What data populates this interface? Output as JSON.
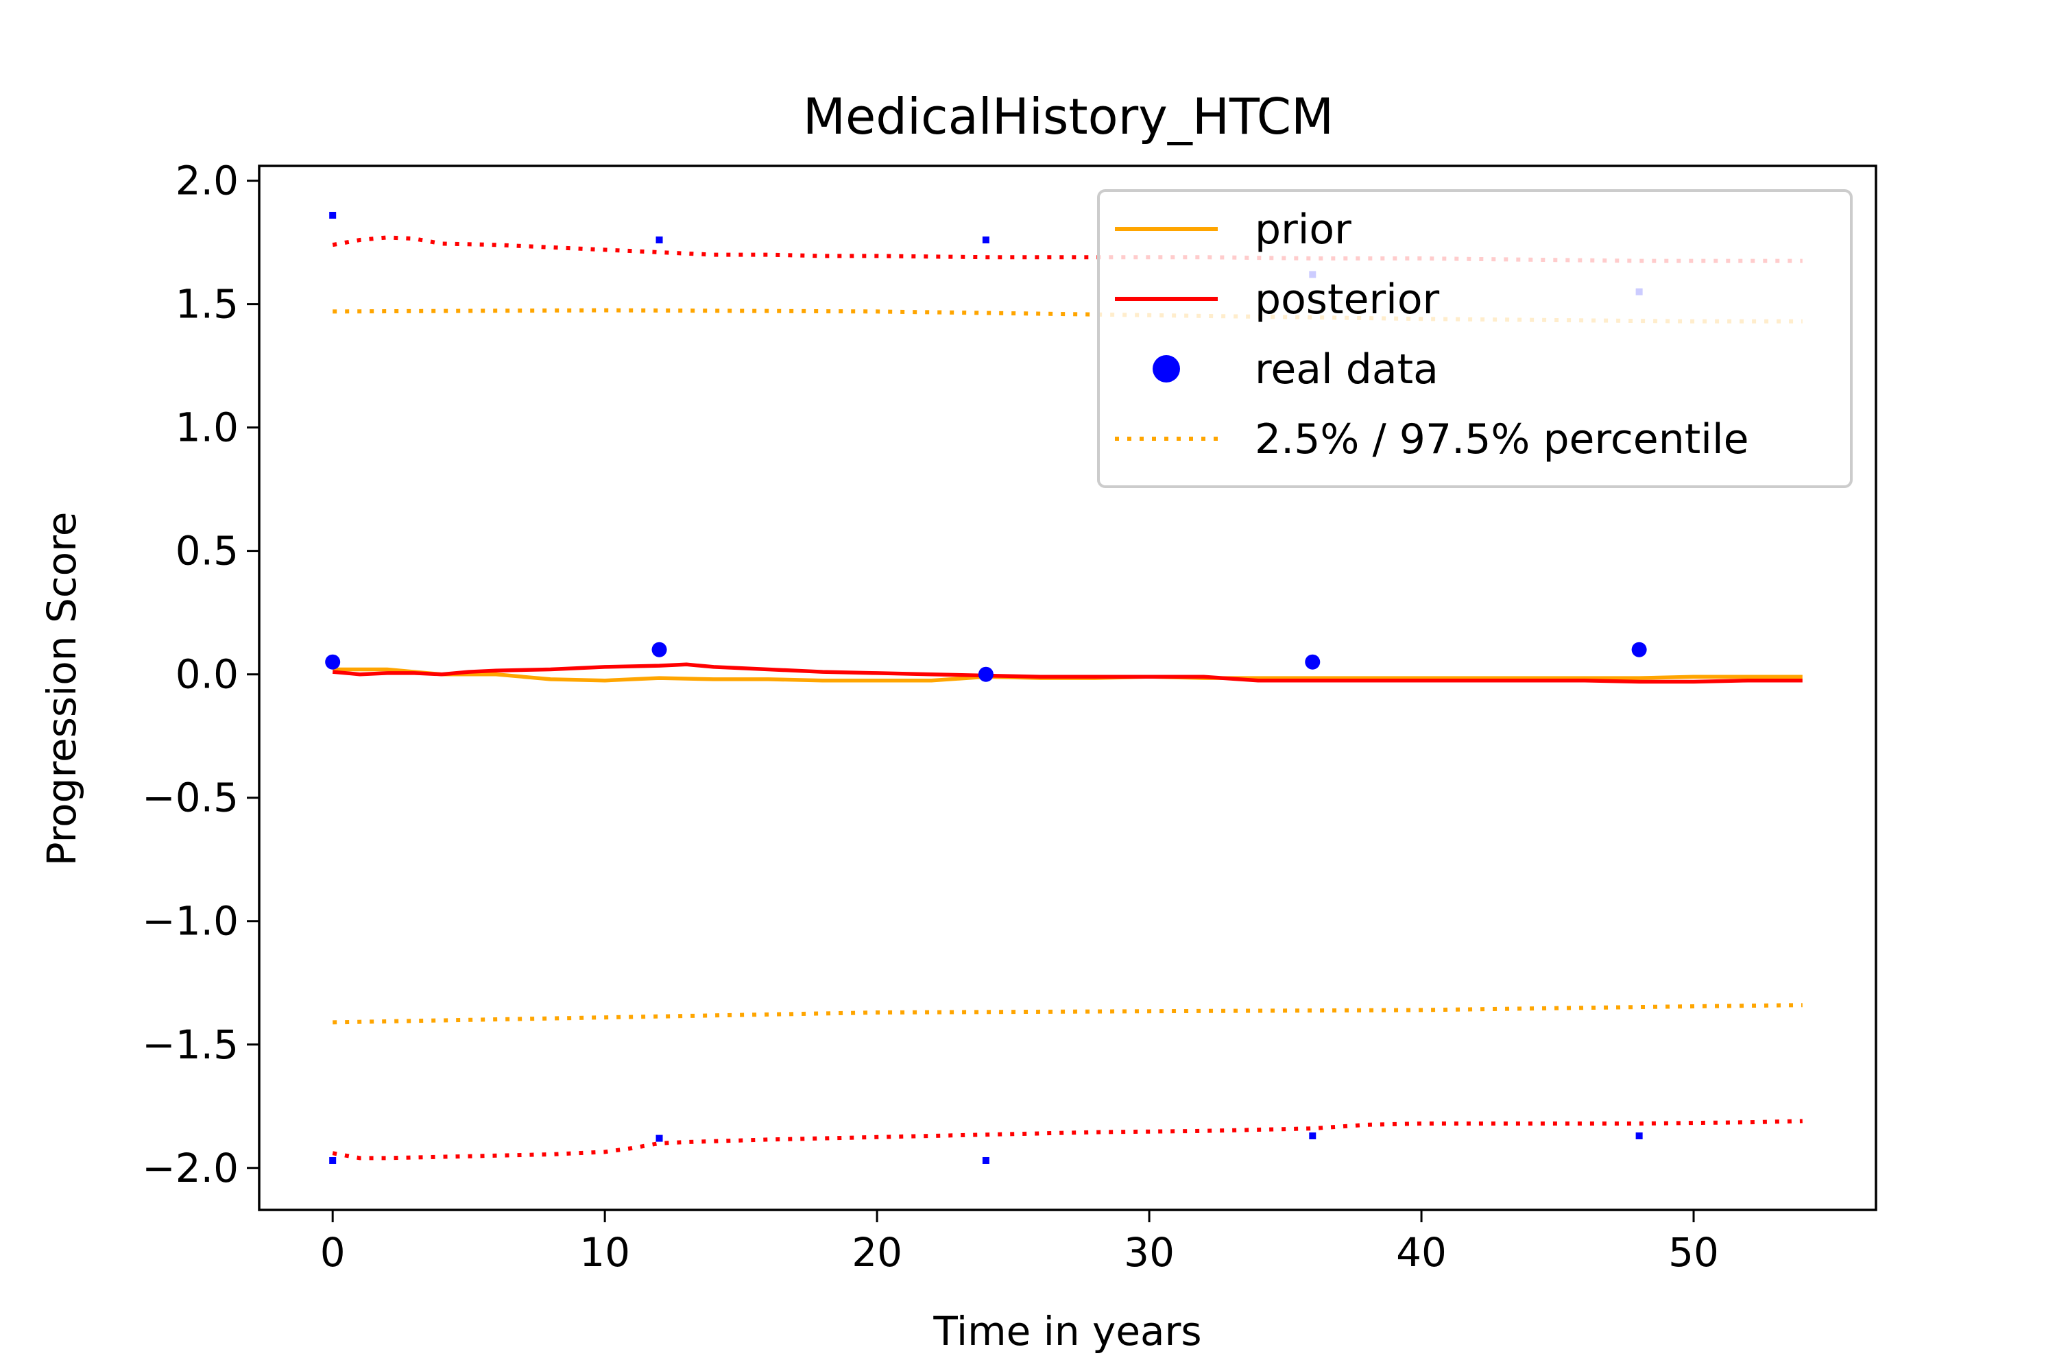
{
  "chart_data": {
    "type": "line",
    "title": "MedicalHistory_HTCM",
    "xlabel": "Time in years",
    "ylabel": "Progression Score",
    "xlim": [
      -2.7,
      56.7
    ],
    "ylim": [
      -2.17,
      2.06
    ],
    "grid": false,
    "legend_position": "top-right",
    "x_ticks": [
      {
        "value": 0,
        "label": "0"
      },
      {
        "value": 10,
        "label": "10"
      },
      {
        "value": 20,
        "label": "20"
      },
      {
        "value": 30,
        "label": "30"
      },
      {
        "value": 40,
        "label": "40"
      },
      {
        "value": 50,
        "label": "50"
      }
    ],
    "y_ticks": [
      {
        "value": 2.0,
        "label": "2.0"
      },
      {
        "value": 1.5,
        "label": "1.5"
      },
      {
        "value": 1.0,
        "label": "1.0"
      },
      {
        "value": 0.5,
        "label": "0.5"
      },
      {
        "value": 0.0,
        "label": "0.0"
      },
      {
        "value": -0.5,
        "label": "−0.5"
      },
      {
        "value": -1.0,
        "label": "−1.0"
      },
      {
        "value": -1.5,
        "label": "−1.5"
      },
      {
        "value": -2.0,
        "label": "−2.0"
      }
    ],
    "legend": [
      {
        "label": "prior",
        "style": "line",
        "color": "#ffa500"
      },
      {
        "label": "posterior",
        "style": "line",
        "color": "#ff0000"
      },
      {
        "label": "real data",
        "style": "marker",
        "color": "#0000ff"
      },
      {
        "label": "2.5% / 97.5% percentile",
        "style": "dotted",
        "color": "#ffa500"
      }
    ],
    "series": [
      {
        "key": "prior_mean",
        "color": "#ffa500",
        "style": "solid",
        "x": [
          0,
          2,
          4,
          6,
          8,
          10,
          12,
          14,
          16,
          18,
          20,
          22,
          24,
          26,
          28,
          30,
          32,
          34,
          36,
          38,
          40,
          42,
          44,
          46,
          48,
          50,
          52,
          54
        ],
        "y": [
          0.02,
          0.02,
          0.0,
          0.0,
          -0.02,
          -0.025,
          -0.015,
          -0.02,
          -0.02,
          -0.025,
          -0.025,
          -0.025,
          -0.01,
          -0.015,
          -0.015,
          -0.01,
          -0.015,
          -0.015,
          -0.015,
          -0.015,
          -0.015,
          -0.015,
          -0.015,
          -0.015,
          -0.015,
          -0.01,
          -0.01,
          -0.01
        ]
      },
      {
        "key": "posterior_mean",
        "color": "#ff0000",
        "style": "solid",
        "x": [
          0,
          1,
          2,
          3,
          4,
          5,
          6,
          8,
          10,
          12,
          13,
          14,
          16,
          18,
          20,
          22,
          24,
          26,
          28,
          30,
          32,
          34,
          36,
          38,
          40,
          42,
          44,
          46,
          48,
          50,
          52,
          54
        ],
        "y": [
          0.01,
          0.0,
          0.005,
          0.005,
          0.0,
          0.01,
          0.015,
          0.02,
          0.03,
          0.035,
          0.04,
          0.03,
          0.02,
          0.01,
          0.005,
          0.0,
          -0.005,
          -0.01,
          -0.01,
          -0.01,
          -0.01,
          -0.025,
          -0.025,
          -0.025,
          -0.025,
          -0.025,
          -0.025,
          -0.025,
          -0.03,
          -0.03,
          -0.025,
          -0.025
        ]
      },
      {
        "key": "prior_upper",
        "color": "#ffa500",
        "style": "dotted",
        "x": [
          0,
          10,
          20,
          30,
          40,
          50,
          54
        ],
        "y": [
          1.47,
          1.475,
          1.47,
          1.455,
          1.44,
          1.43,
          1.43
        ]
      },
      {
        "key": "prior_lower",
        "color": "#ffa500",
        "style": "dotted",
        "x": [
          0,
          10,
          20,
          30,
          40,
          50,
          54
        ],
        "y": [
          -1.41,
          -1.39,
          -1.37,
          -1.365,
          -1.36,
          -1.345,
          -1.34
        ]
      },
      {
        "key": "posterior_upper",
        "color": "#ff0000",
        "style": "dotted",
        "x": [
          0,
          1,
          2,
          3,
          4,
          6,
          8,
          10,
          12,
          14,
          16,
          18,
          20,
          24,
          28,
          32,
          36,
          40,
          44,
          48,
          52,
          54
        ],
        "y": [
          1.74,
          1.76,
          1.77,
          1.765,
          1.745,
          1.74,
          1.73,
          1.72,
          1.71,
          1.7,
          1.7,
          1.695,
          1.695,
          1.69,
          1.69,
          1.69,
          1.685,
          1.685,
          1.68,
          1.675,
          1.675,
          1.675
        ]
      },
      {
        "key": "posterior_lower",
        "color": "#ff0000",
        "style": "dotted",
        "x": [
          0,
          1,
          2,
          4,
          6,
          8,
          10,
          11,
          12,
          13,
          16,
          20,
          24,
          28,
          32,
          36,
          38,
          40,
          44,
          48,
          52,
          54
        ],
        "y": [
          -1.94,
          -1.96,
          -1.96,
          -1.955,
          -1.95,
          -1.945,
          -1.935,
          -1.92,
          -1.9,
          -1.895,
          -1.885,
          -1.875,
          -1.865,
          -1.855,
          -1.85,
          -1.84,
          -1.825,
          -1.82,
          -1.82,
          -1.82,
          -1.815,
          -1.81
        ]
      }
    ],
    "real_data": {
      "color": "#0000ff",
      "main": [
        {
          "x": 0,
          "y": 0.05
        },
        {
          "x": 12,
          "y": 0.1
        },
        {
          "x": 24,
          "y": 0.0
        },
        {
          "x": 36,
          "y": 0.05
        },
        {
          "x": 48,
          "y": 0.1
        }
      ],
      "upper": [
        {
          "x": 0,
          "y": 1.86
        },
        {
          "x": 12,
          "y": 1.76
        },
        {
          "x": 24,
          "y": 1.76
        },
        {
          "x": 36,
          "y": 1.62
        },
        {
          "x": 48,
          "y": 1.55
        }
      ],
      "lower": [
        {
          "x": 0,
          "y": -1.97
        },
        {
          "x": 12,
          "y": -1.88
        },
        {
          "x": 24,
          "y": -1.97
        },
        {
          "x": 36,
          "y": -1.87
        },
        {
          "x": 48,
          "y": -1.87
        }
      ]
    }
  }
}
